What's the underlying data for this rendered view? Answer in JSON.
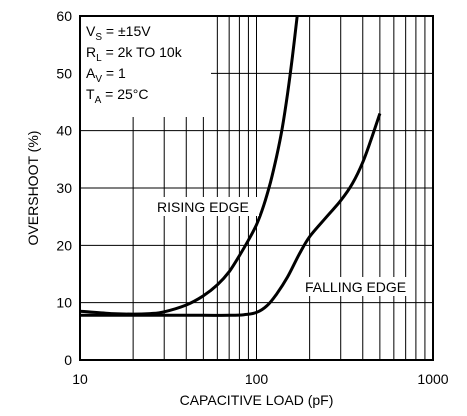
{
  "chart_data": {
    "type": "line",
    "xlabel": "CAPACITIVE LOAD (pF)",
    "ylabel": "OVERSHOOT (%)",
    "xscale": "log",
    "xlim": [
      10,
      1000
    ],
    "ylim": [
      0,
      60
    ],
    "x_ticks": [
      "10",
      "100",
      "1000"
    ],
    "y_ticks": [
      "0",
      "10",
      "20",
      "30",
      "40",
      "50",
      "60"
    ],
    "grid": true,
    "conditions": [
      {
        "main": "V",
        "sub": "S",
        "rest": " = ±15V"
      },
      {
        "main": "R",
        "sub": "L",
        "rest": " = 2k TO 10k"
      },
      {
        "main": "A",
        "sub": "V",
        "rest": " = 1"
      },
      {
        "main": "T",
        "sub": "A",
        "rest": " = 25°C"
      }
    ],
    "series": [
      {
        "name": "RISING EDGE",
        "x": [
          10,
          15,
          20,
          25,
          30,
          40,
          50,
          60,
          70,
          80,
          90,
          100,
          110,
          120,
          130,
          140,
          150,
          160,
          170
        ],
        "y": [
          8.5,
          8.1,
          8.0,
          8.1,
          8.4,
          9.6,
          11.2,
          13.1,
          15.4,
          18.2,
          20.9,
          23.6,
          27.0,
          31.0,
          35.5,
          40.5,
          46.5,
          53.0,
          60.0
        ]
      },
      {
        "name": "FALLING EDGE",
        "x": [
          10,
          20,
          30,
          50,
          70,
          85,
          100,
          115,
          130,
          150,
          175,
          200,
          250,
          300,
          350,
          400,
          450,
          500
        ],
        "y": [
          7.8,
          7.8,
          7.8,
          7.8,
          7.8,
          7.9,
          8.3,
          9.5,
          11.5,
          14.5,
          18.5,
          21.5,
          25.0,
          27.8,
          30.8,
          34.5,
          38.8,
          43.0
        ]
      }
    ]
  }
}
